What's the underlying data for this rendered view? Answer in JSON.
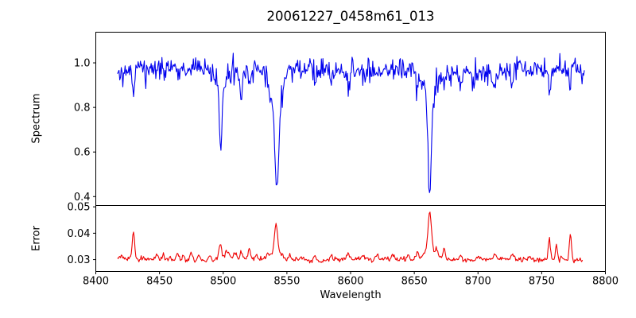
{
  "figure": {
    "title": "20061227_0458m61_013",
    "background": "#ffffff",
    "spine_color": "#000000"
  },
  "chart_data": [
    {
      "type": "line",
      "panel": "spectrum",
      "title": "20061227_0458m61_013",
      "ylabel": "Spectrum",
      "line_color": "#0000ee",
      "xlim": [
        8400,
        8800
      ],
      "ylim": [
        0.36,
        1.1375
      ],
      "yticks": [
        "0.4",
        "0.6",
        "0.8",
        "1.0"
      ],
      "x_range": [
        8417,
        8783.5
      ],
      "n_points": 610,
      "baseline": 0.965,
      "noise_sigma": 0.027,
      "slow_amp": 0.013,
      "noise_seed": 12345,
      "absorption_lines": [
        {
          "center": 8498.0,
          "depth": 0.26,
          "sigma": 1.0
        },
        {
          "center": 8498.0,
          "depth": 0.08,
          "sigma": 2.8
        },
        {
          "center": 8542.1,
          "depth": 0.42,
          "sigma": 1.5
        },
        {
          "center": 8542.1,
          "depth": 0.15,
          "sigma": 4.5
        },
        {
          "center": 8662.1,
          "depth": 0.43,
          "sigma": 1.3
        },
        {
          "center": 8662.1,
          "depth": 0.13,
          "sigma": 4.5
        },
        {
          "center": 8429.5,
          "depth": 0.09,
          "sigma": 0.8
        },
        {
          "center": 8514.0,
          "depth": 0.1,
          "sigma": 0.8
        },
        {
          "center": 8520.5,
          "depth": 0.06,
          "sigma": 0.8
        },
        {
          "center": 8572.5,
          "depth": 0.08,
          "sigma": 0.8
        },
        {
          "center": 8598.0,
          "depth": 0.06,
          "sigma": 0.9
        },
        {
          "center": 8652.0,
          "depth": 0.09,
          "sigma": 0.8
        },
        {
          "center": 8673.5,
          "depth": 0.08,
          "sigma": 0.8
        },
        {
          "center": 8686.0,
          "depth": 0.07,
          "sigma": 0.9
        },
        {
          "center": 8713.0,
          "depth": 0.06,
          "sigma": 0.8
        },
        {
          "center": 8727.0,
          "depth": 0.08,
          "sigma": 0.8
        },
        {
          "center": 8756.0,
          "depth": 0.07,
          "sigma": 0.7
        },
        {
          "center": 8772.5,
          "depth": 0.08,
          "sigma": 0.7
        }
      ]
    },
    {
      "type": "line",
      "panel": "error",
      "ylabel": "Error",
      "xlabel": "Wavelength",
      "line_color": "#ee0000",
      "xlim": [
        8400,
        8800
      ],
      "ylim": [
        0.0255,
        0.0505
      ],
      "yticks": [
        "0.03",
        "0.04",
        "0.05"
      ],
      "xticks": [
        8400,
        8450,
        8500,
        8550,
        8600,
        8650,
        8700,
        8750,
        8800
      ],
      "x_range": [
        8417,
        8782
      ],
      "n_points": 608,
      "baseline": 0.03,
      "noise_sigma": 0.00045,
      "slow_amp": 0.0005,
      "noise_seed": 777,
      "peaks": [
        {
          "center": 8420.5,
          "amp": 0.0012,
          "sigma": 1.0
        },
        {
          "center": 8429.5,
          "amp": 0.01,
          "sigma": 0.9
        },
        {
          "center": 8448.0,
          "amp": 0.002,
          "sigma": 1.0
        },
        {
          "center": 8453.0,
          "amp": 0.0025,
          "sigma": 0.9
        },
        {
          "center": 8458.0,
          "amp": 0.0014,
          "sigma": 0.8
        },
        {
          "center": 8464.0,
          "amp": 0.0028,
          "sigma": 0.9
        },
        {
          "center": 8469.0,
          "amp": 0.0018,
          "sigma": 0.8
        },
        {
          "center": 8475.0,
          "amp": 0.003,
          "sigma": 0.9
        },
        {
          "center": 8481.0,
          "amp": 0.002,
          "sigma": 0.8
        },
        {
          "center": 8490.0,
          "amp": 0.0016,
          "sigma": 0.9
        },
        {
          "center": 8497.5,
          "amp": 0.0065,
          "sigma": 1.1
        },
        {
          "center": 8503.0,
          "amp": 0.0028,
          "sigma": 1.6
        },
        {
          "center": 8509.0,
          "amp": 0.002,
          "sigma": 1.0
        },
        {
          "center": 8514.0,
          "amp": 0.0024,
          "sigma": 0.9
        },
        {
          "center": 8520.5,
          "amp": 0.0032,
          "sigma": 1.0
        },
        {
          "center": 8526.0,
          "amp": 0.0015,
          "sigma": 0.9
        },
        {
          "center": 8535.0,
          "amp": 0.0017,
          "sigma": 1.0
        },
        {
          "center": 8541.5,
          "amp": 0.0105,
          "sigma": 1.2
        },
        {
          "center": 8541.5,
          "amp": 0.003,
          "sigma": 4.0
        },
        {
          "center": 8552.0,
          "amp": 0.0017,
          "sigma": 1.0
        },
        {
          "center": 8561.0,
          "amp": 0.0014,
          "sigma": 1.0
        },
        {
          "center": 8572.0,
          "amp": 0.0019,
          "sigma": 1.0
        },
        {
          "center": 8585.0,
          "amp": 0.0016,
          "sigma": 1.2
        },
        {
          "center": 8598.0,
          "amp": 0.0019,
          "sigma": 1.2
        },
        {
          "center": 8610.0,
          "amp": 0.0014,
          "sigma": 1.0
        },
        {
          "center": 8621.0,
          "amp": 0.0014,
          "sigma": 1.0
        },
        {
          "center": 8633.0,
          "amp": 0.0016,
          "sigma": 1.0
        },
        {
          "center": 8645.0,
          "amp": 0.0019,
          "sigma": 1.0
        },
        {
          "center": 8652.0,
          "amp": 0.0024,
          "sigma": 1.0
        },
        {
          "center": 8662.1,
          "amp": 0.0145,
          "sigma": 1.3
        },
        {
          "center": 8662.1,
          "amp": 0.004,
          "sigma": 5.0
        },
        {
          "center": 8668.0,
          "amp": 0.0018,
          "sigma": 1.0
        },
        {
          "center": 8673.5,
          "amp": 0.0042,
          "sigma": 0.9
        },
        {
          "center": 8686.0,
          "amp": 0.0019,
          "sigma": 1.0
        },
        {
          "center": 8700.0,
          "amp": 0.0013,
          "sigma": 1.0
        },
        {
          "center": 8713.0,
          "amp": 0.0014,
          "sigma": 1.0
        },
        {
          "center": 8727.0,
          "amp": 0.0019,
          "sigma": 1.0
        },
        {
          "center": 8741.0,
          "amp": 0.0017,
          "sigma": 1.0
        },
        {
          "center": 8756.0,
          "amp": 0.0085,
          "sigma": 0.8
        },
        {
          "center": 8761.5,
          "amp": 0.0052,
          "sigma": 0.8
        },
        {
          "center": 8766.0,
          "amp": 0.0018,
          "sigma": 0.8
        },
        {
          "center": 8772.5,
          "amp": 0.0098,
          "sigma": 0.9
        }
      ]
    }
  ]
}
